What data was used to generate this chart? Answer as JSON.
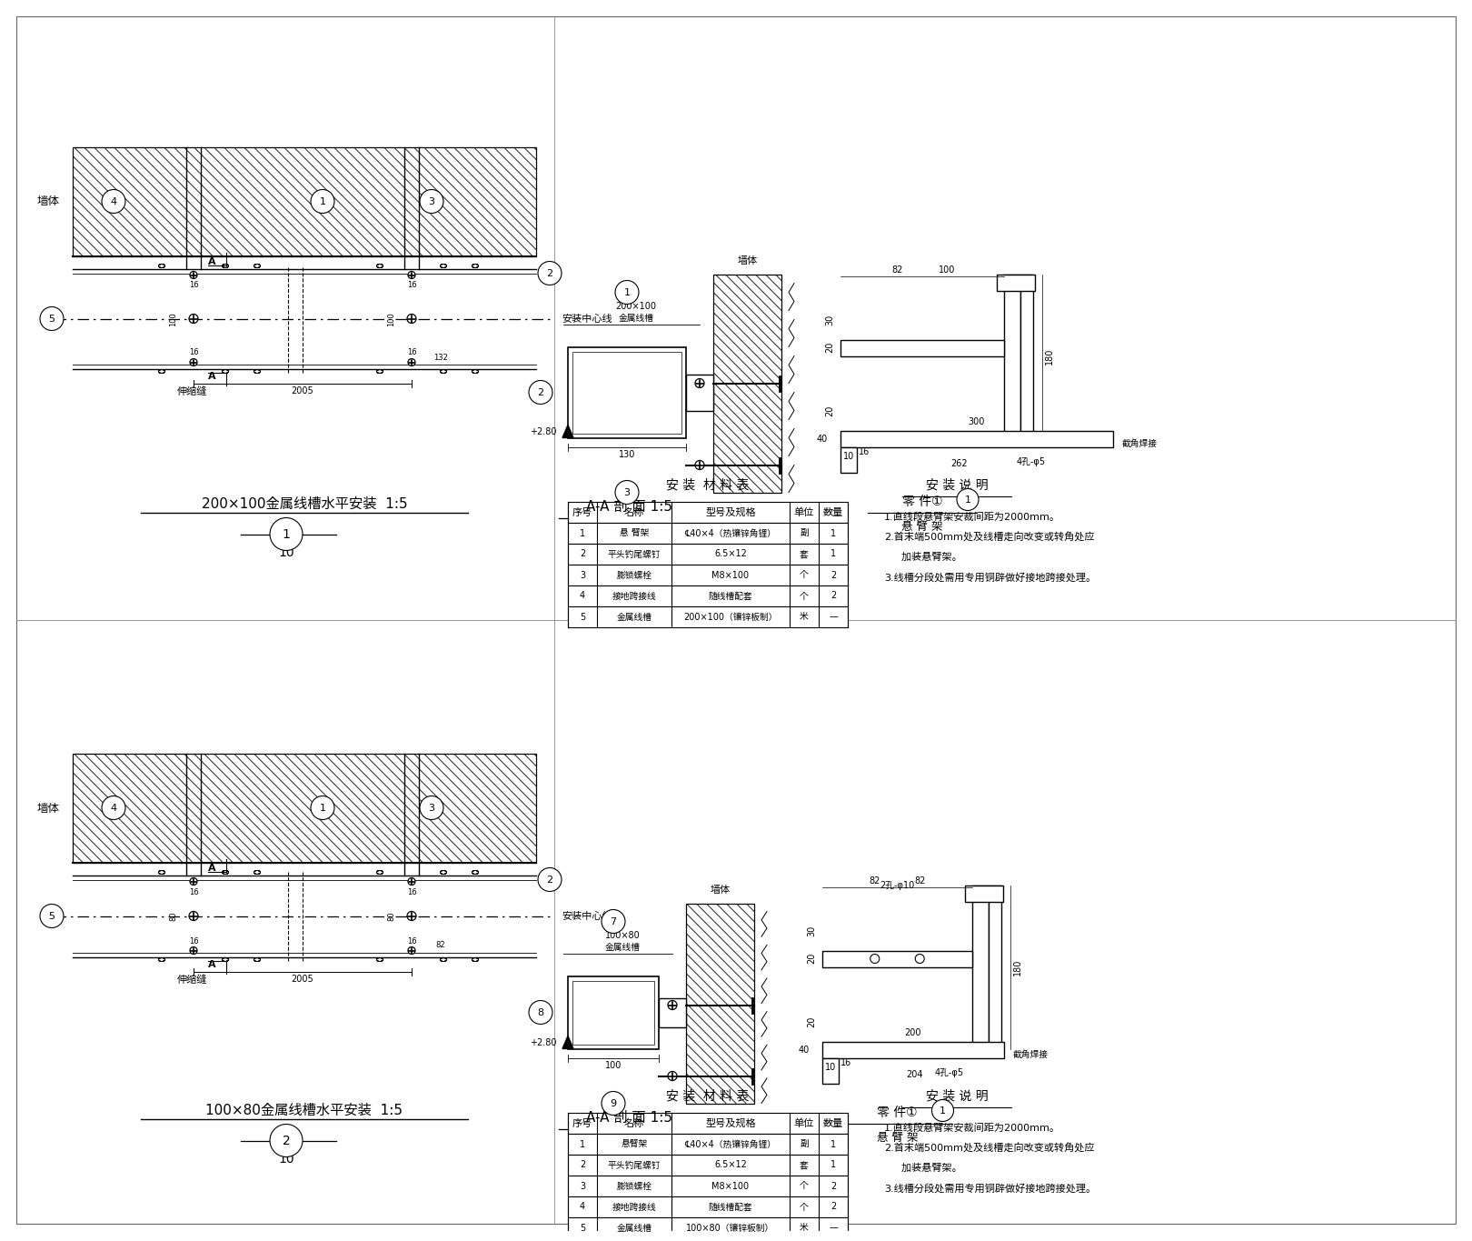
{
  "bg_color": "#ffffff",
  "lc": "#000000",
  "title1": "200×100金属线槽水平安装  1:5",
  "title2": "100×80金属线槽水平安装  1:5",
  "sec_label": "A-A 剖 面 1:5",
  "part_label": "零 件①",
  "part_sub": "悬 臂 架",
  "tbl_title": "安 装  材 料 表",
  "ins_title": "安 装 说 明",
  "notes1": [
    "1.直线段悬臂架安裁间距为2000mm。",
    "2.首末端500mm处及线槽走向改变或转角处应",
    "  加装悬臂架。",
    "3.线槽分段处需用专用铜辟做好接地跨接处理。"
  ],
  "notes2": [
    "1.直线段悬臂架安裁间距为2000mm。",
    "2.首末端500mm处及线槽走向改变或转角处应",
    "  加装悬臂架。",
    "3.线槽分段处需用专用铜辟做好接地跨接处理。"
  ],
  "header1": [
    "序号",
    "名称",
    "型号及规格",
    "单位",
    "数量"
  ],
  "rows1": [
    [
      "1",
      "悬 臂架",
      "℄40×4（热镶锌角锂）",
      "副",
      "1"
    ],
    [
      "2",
      "平头钓尾螺钉",
      "6.5×12",
      "套",
      "1"
    ],
    [
      "3",
      "膨锁螺栓",
      "M8×100",
      "个",
      "2"
    ],
    [
      "4",
      "接地跨接线",
      "随线槽配套",
      "个",
      "2"
    ],
    [
      "5",
      "金属线槽",
      "200×100（镶锌板制）",
      "米",
      "—"
    ]
  ],
  "rows2": [
    [
      "1",
      "悬臂架",
      "℄40×4（热镶锌角锂）",
      "副",
      "1"
    ],
    [
      "2",
      "平头钓尾螺钉",
      "6.5×12",
      "套",
      "1"
    ],
    [
      "3",
      "膨锁螺栓",
      "M8×100",
      "个",
      "2"
    ],
    [
      "4",
      "接地跨接线",
      "随线槽配套",
      "个",
      "2"
    ],
    [
      "5",
      "金属线槽",
      "100×80（镶锌板制）",
      "米",
      "—"
    ]
  ],
  "lbl_wall": "墙体",
  "lbl_cl": "安装中心线",
  "lbl_scf": "伸缩缝",
  "lbl_200x100": "200×100\n金属线槽",
  "lbl_100x80": "100×80\n金属线槽",
  "lbl_xbj": "悬臂架",
  "lbl_jjhj": "截角焊接",
  "lbl_2hole10": "2孔-φ10",
  "lbl_4hole5": "4孔-φ5"
}
